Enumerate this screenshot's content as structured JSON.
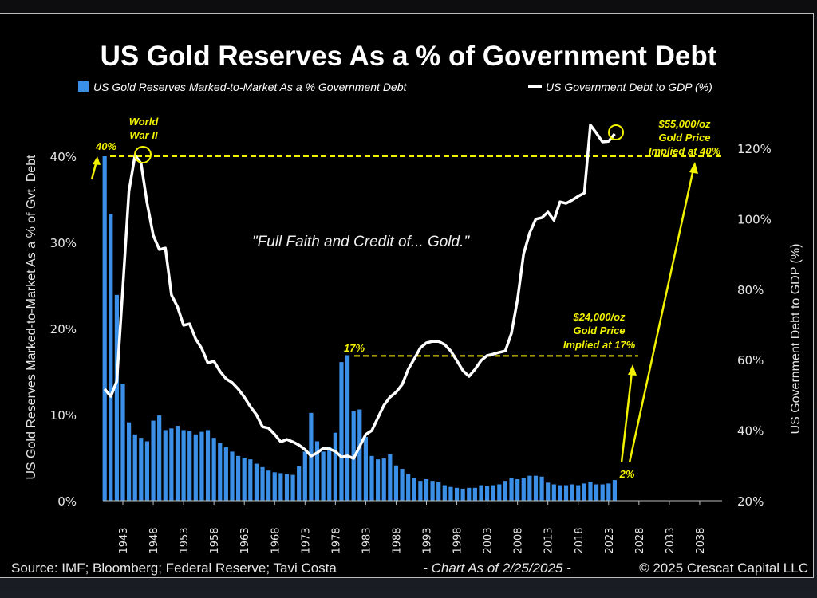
{
  "chart_data": {
    "type": "bar+line",
    "title": "US Gold Reserves As a % of Government Debt",
    "legend": {
      "placement": "top-center",
      "entries": [
        {
          "label": "US Gold Reserves Marked-to-Market As a % Government Debt",
          "type": "bar",
          "color": "#3b8fe6"
        },
        {
          "label": "US Government Debt to GDP (%)",
          "type": "line",
          "color": "#ffffff"
        }
      ]
    },
    "ylabel_left": "US Gold Reserves Marked-to-Market As a % of Gvt. Debt",
    "ylabel_right": "US Government Debt to GDP (%)",
    "ylim_left": [
      0,
      40
    ],
    "ylim_right": [
      20,
      120
    ],
    "yticks_left": [
      "0%",
      "10%",
      "20%",
      "30%",
      "40%"
    ],
    "yticks_right": [
      "20%",
      "40%",
      "60%",
      "80%",
      "100%",
      "120%"
    ],
    "xlim": [
      1940,
      2040
    ],
    "xticks": [
      "1943",
      "1948",
      "1953",
      "1958",
      "1963",
      "1968",
      "1973",
      "1978",
      "1983",
      "1988",
      "1993",
      "1998",
      "2003",
      "2008",
      "2013",
      "2018",
      "2023",
      "2028",
      "2033",
      "2038"
    ],
    "grid": false,
    "x": [
      1940,
      1941,
      1942,
      1943,
      1944,
      1945,
      1946,
      1947,
      1948,
      1949,
      1950,
      1951,
      1952,
      1953,
      1954,
      1955,
      1956,
      1957,
      1958,
      1959,
      1960,
      1961,
      1962,
      1963,
      1964,
      1965,
      1966,
      1967,
      1968,
      1969,
      1970,
      1971,
      1972,
      1973,
      1974,
      1975,
      1976,
      1977,
      1978,
      1979,
      1980,
      1981,
      1982,
      1983,
      1984,
      1985,
      1986,
      1987,
      1988,
      1989,
      1990,
      1991,
      1992,
      1993,
      1994,
      1995,
      1996,
      1997,
      1998,
      1999,
      2000,
      2001,
      2002,
      2003,
      2004,
      2005,
      2006,
      2007,
      2008,
      2009,
      2010,
      2011,
      2012,
      2013,
      2014,
      2015,
      2016,
      2017,
      2018,
      2019,
      2020,
      2021,
      2022,
      2023,
      2024
    ],
    "series": [
      {
        "name": "US Gold Reserves Marked-to-Market As a % Government Debt",
        "type": "bar",
        "axis": "left",
        "color": "#3b8fe6",
        "values": [
          40,
          33.3,
          23.9,
          13.6,
          9.1,
          7.7,
          7.3,
          6.9,
          9.3,
          9.9,
          8.2,
          8.4,
          8.7,
          8.2,
          8.1,
          7.7,
          8.0,
          8.2,
          7.3,
          6.7,
          6.2,
          5.7,
          5.2,
          5.0,
          4.8,
          4.3,
          3.9,
          3.5,
          3.3,
          3.2,
          3.1,
          3.0,
          4.0,
          5.7,
          10.2,
          6.9,
          5.7,
          6.3,
          7.9,
          16.1,
          16.9,
          10.4,
          10.6,
          7.4,
          5.2,
          4.8,
          4.9,
          5.4,
          4.1,
          3.7,
          3.1,
          2.6,
          2.3,
          2.5,
          2.3,
          2.2,
          1.8,
          1.6,
          1.5,
          1.4,
          1.5,
          1.5,
          1.8,
          1.7,
          1.8,
          1.9,
          2.3,
          2.6,
          2.5,
          2.6,
          2.9,
          2.9,
          2.8,
          2.1,
          1.9,
          1.8,
          1.8,
          1.9,
          1.8,
          2.0,
          2.2,
          1.9,
          1.9,
          2.0,
          2.4
        ]
      },
      {
        "name": "US Government Debt to GDP (%)",
        "type": "line",
        "axis": "right",
        "color": "#ffffff",
        "values": [
          51.7,
          49.6,
          53.9,
          80.6,
          107.8,
          118,
          115.7,
          104.4,
          95.3,
          91.3,
          91.7,
          78.4,
          75,
          69.8,
          70.2,
          65.9,
          63.2,
          59.1,
          59.6,
          56.7,
          54.6,
          53.5,
          51.7,
          49.4,
          46.7,
          44.4,
          41,
          40.6,
          38.8,
          36.7,
          37.4,
          36.7,
          35.8,
          34.5,
          32.7,
          33.6,
          34.9,
          34.7,
          34,
          32.4,
          32.7,
          32,
          35.4,
          38.8,
          39.9,
          43.5,
          47.1,
          49.4,
          50.8,
          53,
          57.3,
          60.3,
          63.4,
          64.8,
          65.2,
          65.2,
          64.3,
          62.5,
          59.8,
          56.9,
          55.3,
          57.3,
          59.8,
          61.2,
          61.6,
          62.1,
          62.5,
          67.5,
          77.2,
          90.1,
          96,
          99.9,
          100.3,
          101.9,
          99.6,
          104.8,
          104.4,
          105.3,
          106.4,
          107.3,
          126.6,
          124.3,
          121.8,
          122,
          124.1
        ]
      }
    ],
    "annotations": {
      "label_40": "40%",
      "ww2_line1": "World",
      "ww2_line2": "War II",
      "quote": "\"Full Faith and Credit of... Gold.\"",
      "label_17": "17%",
      "label_2": "2%",
      "ann24_line1": "$24,000/oz",
      "ann24_line2": "Gold Price",
      "ann24_line3": "Implied at 17%",
      "ann55_line1": "$55,000/oz",
      "ann55_line2": "Gold Price",
      "ann55_line3": "Implied at 40%",
      "reference_levels_left_axis": [
        40,
        17
      ],
      "color": "#f2f200"
    },
    "footer": {
      "source": "Source: IMF; Bloomberg; Federal Reserve; Tavi Costa",
      "date": "-  Chart As of 2/25/2025  -",
      "copyright": "© 2025 Crescat Capital LLC"
    }
  }
}
